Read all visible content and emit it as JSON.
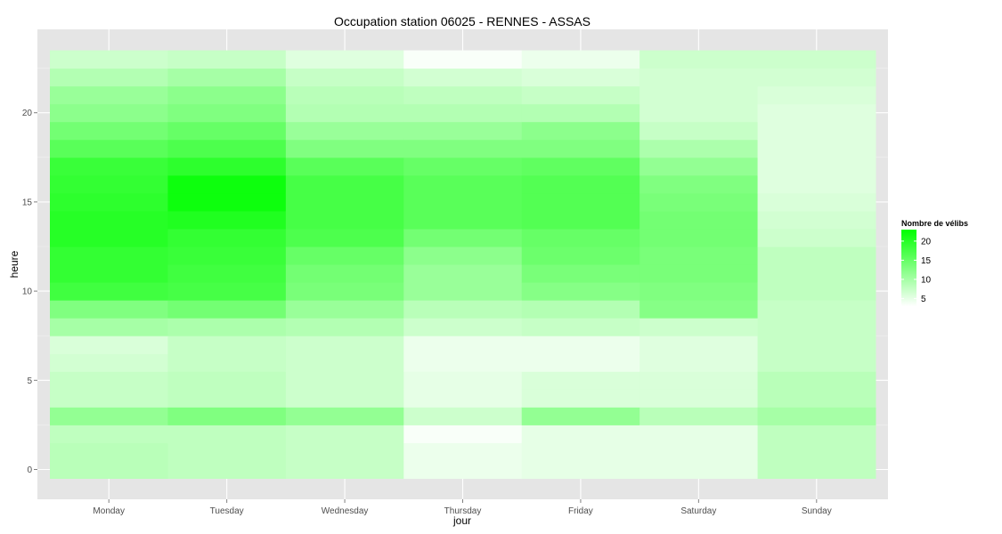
{
  "chart_data": {
    "type": "heatmap",
    "title": "Occupation station 06025 - RENNES - ASSAS",
    "xlabel": "jour",
    "ylabel": "heure",
    "x_categories": [
      "Monday",
      "Tuesday",
      "Wednesday",
      "Thursday",
      "Friday",
      "Saturday",
      "Sunday"
    ],
    "y_range": [
      -0.5,
      23.5
    ],
    "y_ticks": [
      0,
      5,
      10,
      15,
      20
    ],
    "grid": true,
    "legend": {
      "title": "Nombre de vélibs",
      "position": "right",
      "breaks": [
        5,
        10,
        15,
        20
      ],
      "min": 3,
      "max": 23,
      "low_color": "#ffffff",
      "high_color": "#00ff00"
    },
    "values": {
      "Monday": [
        8.5,
        8.5,
        8,
        11.5,
        7.5,
        7.5,
        6.5,
        6,
        10,
        13,
        18,
        19,
        19,
        20,
        20,
        19.5,
        19,
        18.5,
        16,
        14,
        12,
        11,
        9,
        7
      ],
      "Tuesday": [
        8,
        8,
        8,
        13,
        8,
        8,
        7.5,
        7.5,
        9.5,
        14,
        17.5,
        18,
        18.5,
        19,
        20.5,
        22,
        22,
        19.5,
        17,
        15,
        13,
        12,
        10,
        7.5
      ],
      "Wednesday": [
        7.5,
        7.5,
        7.5,
        11.5,
        7,
        7,
        7,
        7,
        9,
        11,
        13.5,
        14,
        15,
        17,
        17.5,
        17.5,
        17.5,
        16,
        13,
        11,
        9,
        8.5,
        7.5,
        5.5
      ],
      "Thursday": [
        4.5,
        4.5,
        3.5,
        7,
        5,
        5,
        4.5,
        4.5,
        7,
        8.5,
        11,
        11,
        12,
        14,
        16,
        16,
        16,
        15,
        13,
        11,
        9,
        8,
        6.5,
        3.5
      ],
      "Friday": [
        5,
        5,
        5,
        11.5,
        6,
        6,
        4.5,
        4.5,
        7.5,
        9,
        12.5,
        13.5,
        14.5,
        15,
        16.5,
        16.5,
        16.5,
        15.5,
        13,
        12,
        9,
        7.5,
        6,
        4.5
      ],
      "Saturday": [
        5,
        5,
        5,
        8.5,
        6,
        6,
        5.5,
        5.5,
        7,
        12.5,
        13,
        13.5,
        13.5,
        14,
        14,
        13.5,
        13,
        11.5,
        9.5,
        7.5,
        6.5,
        6.5,
        6.5,
        7
      ],
      "Sunday": [
        8,
        8,
        8,
        10,
        8.5,
        8.5,
        7.5,
        7.5,
        7.5,
        7.5,
        8,
        8,
        8,
        7,
        6.5,
        6,
        5.5,
        5.5,
        5.5,
        5.5,
        5.5,
        6,
        6.5,
        7
      ]
    }
  }
}
